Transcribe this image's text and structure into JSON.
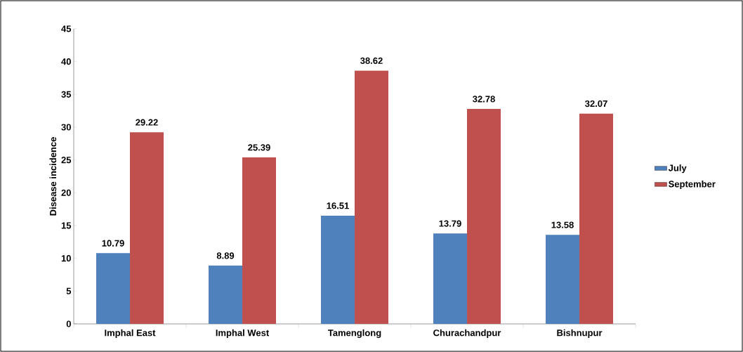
{
  "chart_data": {
    "type": "bar",
    "ylabel": "Disease incidence",
    "categories": [
      "Imphal East",
      "Imphal West",
      "Tamenglong",
      "Churachandpur",
      "Bishnupur"
    ],
    "series": [
      {
        "name": "July",
        "color": "#4f81bd",
        "values": [
          10.79,
          8.89,
          16.51,
          13.79,
          13.58
        ]
      },
      {
        "name": "September",
        "color": "#c0504d",
        "values": [
          29.22,
          25.39,
          38.62,
          32.78,
          32.07
        ]
      }
    ],
    "ylim": [
      0,
      45
    ],
    "yticks": [
      0,
      5,
      10,
      15,
      20,
      25,
      30,
      35,
      40,
      45
    ],
    "data_labels": true,
    "legend": "right",
    "grid": false
  }
}
